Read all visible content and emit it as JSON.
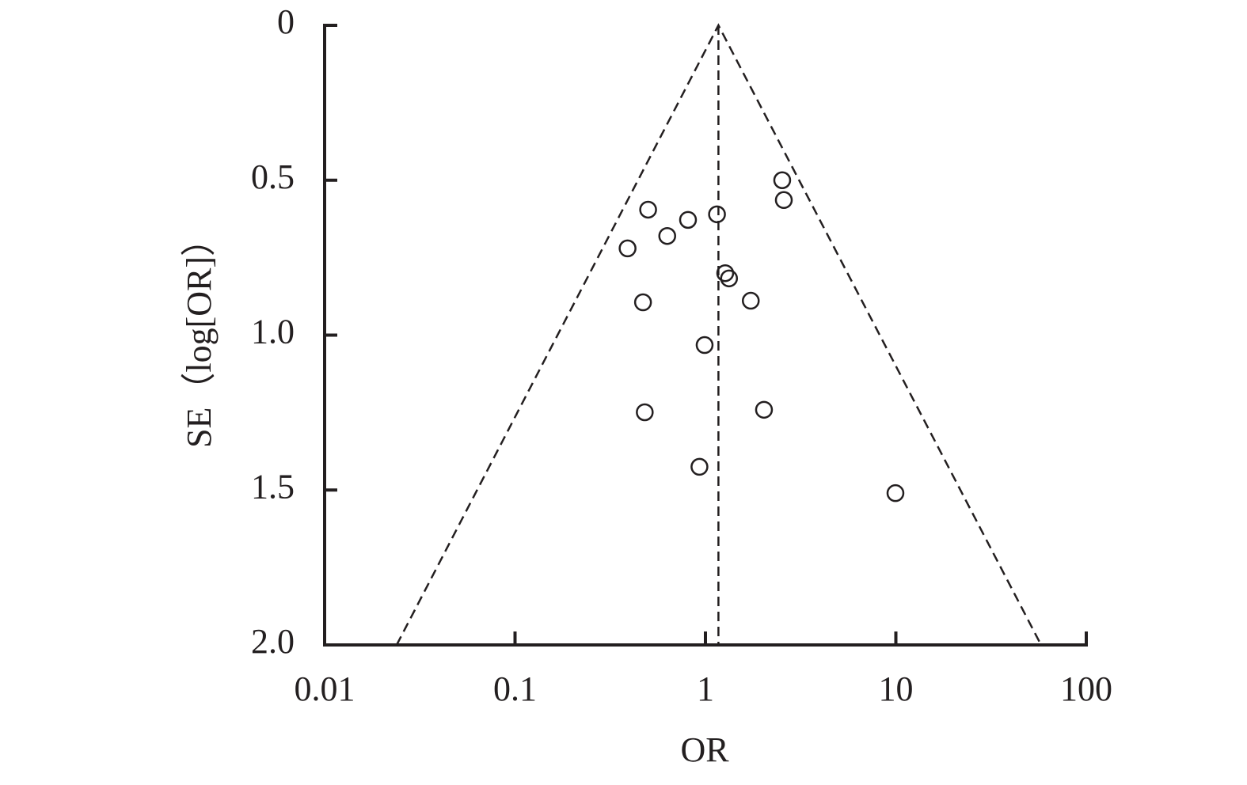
{
  "chart_data": {
    "type": "scatter",
    "x_label": "OR",
    "y_label": "SE（log[OR]）",
    "xscale": "log",
    "y_inverted": true,
    "xlim": [
      0.01,
      100
    ],
    "xticks": [
      0.01,
      0.1,
      1,
      10,
      100
    ],
    "ylim": [
      0,
      2
    ],
    "yticks": [
      0,
      0.5,
      {
        "value": 1,
        "label": "1.0"
      },
      1.5,
      {
        "value": 2,
        "label": "2.0"
      }
    ],
    "color": "#231f20",
    "pooled_estimate": 1.17,
    "funnel_limits": {
      "x": [
        0.0239,
        1.17,
        57.9
      ],
      "y": [
        2,
        0,
        2
      ]
    },
    "x": [
      2.53,
      2.58,
      0.5,
      1.15,
      0.81,
      0.63,
      0.39,
      1.27,
      1.33,
      0.47,
      1.73,
      0.99,
      0.48,
      2.03,
      0.93,
      9.95
    ],
    "values": [
      0.5,
      0.564,
      0.595,
      0.61,
      0.628,
      0.68,
      0.72,
      0.8,
      0.817,
      0.894,
      0.889,
      1.032,
      1.249,
      1.241,
      1.425,
      1.51
    ]
  }
}
